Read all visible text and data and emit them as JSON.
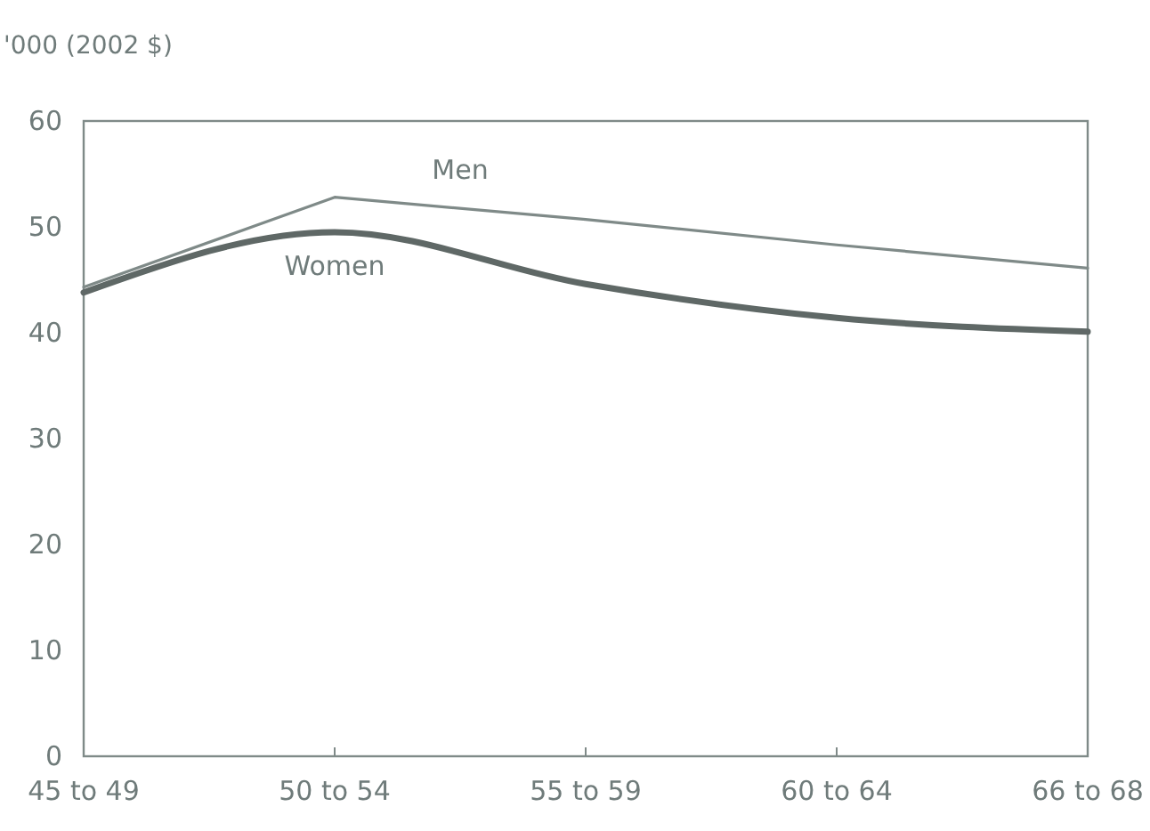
{
  "chart_data": {
    "type": "line",
    "ylabel": "'000 (2002 $)",
    "categories": [
      "45 to 49",
      "50 to 54",
      "55 to 59",
      "60 to 64",
      "66 to 68"
    ],
    "series": [
      {
        "name": "Men",
        "color": "#7f8a88",
        "values": [
          44.3,
          52.8,
          50.7,
          48.3,
          46.1
        ]
      },
      {
        "name": "Women",
        "color": "#5f6866",
        "values": [
          43.8,
          49.5,
          44.6,
          41.4,
          40.1
        ]
      }
    ],
    "ylim": [
      0,
      60
    ],
    "yticks": [
      0,
      10,
      20,
      30,
      40,
      50,
      60
    ],
    "grid": false,
    "legend": false,
    "marker": "none",
    "line_style": "solid"
  }
}
